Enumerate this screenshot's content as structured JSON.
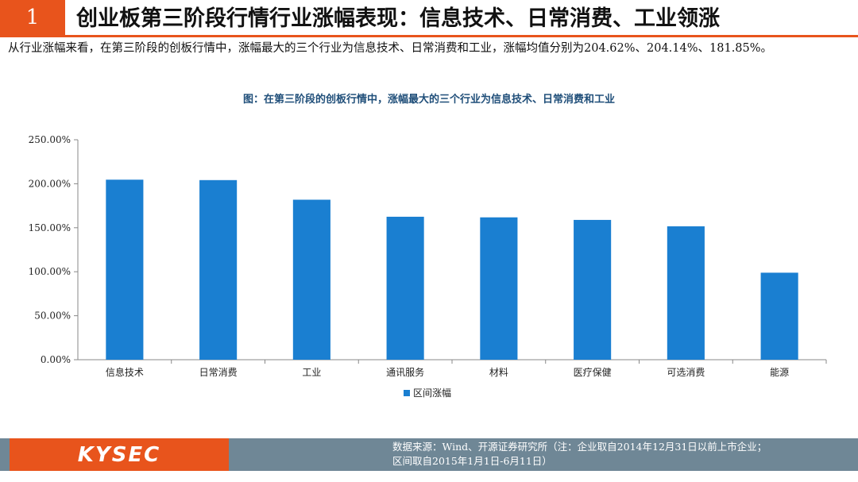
{
  "slide": {
    "number": "1",
    "title": "创业板第三阶段行情行业涨幅表现：信息技术、日常消费、工业领涨",
    "summary": "从行业涨幅来看，在第三阶段的创板行情中，涨幅最大的三个行业为信息技术、日常消费和工业，涨幅均值分别为204.62%、204.14%、181.85%。"
  },
  "colors": {
    "accent": "#e8541c",
    "bar": "#1a7fd1",
    "footer": "#6f8796",
    "caption": "#1f4e79"
  },
  "chart_data": {
    "type": "bar",
    "title": "图：在第三阶段的创板行情中，涨幅最大的三个行业为信息技术、日常消费和工业",
    "categories": [
      "信息技术",
      "日常消费",
      "工业",
      "通讯服务",
      "材料",
      "医疗保健",
      "可选消费",
      "能源"
    ],
    "series": [
      {
        "name": "区间涨幅",
        "values": [
          204.62,
          204.14,
          181.85,
          162.5,
          161.8,
          158.9,
          151.6,
          98.9
        ]
      }
    ],
    "ylim": [
      0,
      250
    ],
    "yticks": [
      "0.00%",
      "50.00%",
      "100.00%",
      "150.00%",
      "200.00%",
      "250.00%"
    ],
    "ytick_values": [
      0,
      50,
      100,
      150,
      200,
      250
    ],
    "legend_position": "bottom",
    "grid": false
  },
  "footer": {
    "logo_text": "KYSEC",
    "source_line1": "数据来源：Wind、开源证券研究所（注：企业取自2014年12月31日以前上市企业；",
    "source_line2": "区间取自2015年1月1日-6月11日）"
  }
}
